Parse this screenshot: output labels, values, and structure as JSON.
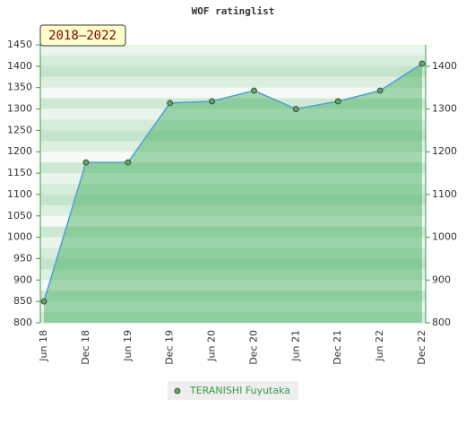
{
  "chart_data": {
    "type": "line",
    "title": "WOF ratinglist",
    "badge": "2018–2022",
    "categories": [
      "Jun 18",
      "Dec 18",
      "Jun 19",
      "Dec 19",
      "Jun 20",
      "Dec 20",
      "Jun 21",
      "Dec 21",
      "Jun 22",
      "Dec 22"
    ],
    "series": [
      {
        "name": "TERANISHI Fuyutaka",
        "color": "#4f9fd6",
        "marker_color": "#5aa865",
        "values": [
          850,
          1175,
          1175,
          1314,
          1318,
          1343,
          1300,
          1318,
          1343,
          1406
        ]
      }
    ],
    "ylim": [
      800,
      1450
    ],
    "yticks": [
      800,
      850,
      900,
      950,
      1000,
      1050,
      1100,
      1150,
      1200,
      1250,
      1300,
      1350,
      1400,
      1450
    ],
    "y2lim": [
      800,
      1450
    ],
    "y2ticks": [
      800,
      900,
      1000,
      1100,
      1200,
      1300,
      1400
    ]
  }
}
